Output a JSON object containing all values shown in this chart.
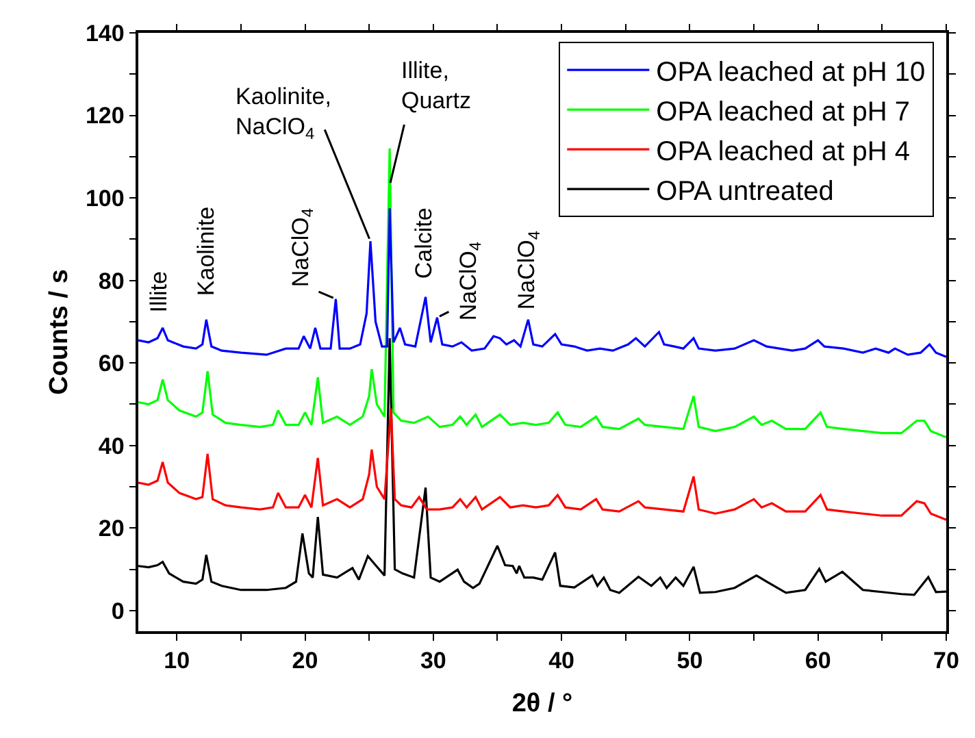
{
  "chart_data": {
    "type": "line",
    "xlabel": "2θ / °",
    "ylabel": "Counts / s",
    "xlim": [
      7,
      70
    ],
    "ylim": [
      -5,
      140
    ],
    "xticks": [
      10,
      {
        "value": 15,
        "label": null
      },
      20,
      {
        "value": 25,
        "label": null
      },
      30,
      {
        "value": 35,
        "label": null
      },
      40,
      {
        "value": 45,
        "label": null
      },
      50,
      {
        "value": 55,
        "label": null
      },
      60,
      {
        "value": 65,
        "label": null
      },
      70
    ],
    "yticks": [
      0,
      {
        "value": 10,
        "label": null
      },
      20,
      {
        "value": 30,
        "label": null
      },
      40,
      {
        "value": 50,
        "label": null
      },
      60,
      {
        "value": 70,
        "label": null
      },
      80,
      {
        "value": 90,
        "label": null
      },
      100,
      {
        "value": 110,
        "label": null
      },
      120,
      {
        "value": 130,
        "label": null
      },
      140
    ],
    "legend": "top right",
    "marker": "none",
    "line_style": "solid",
    "series": [
      {
        "name": "OPA leached at pH 10",
        "color": "#0000ff",
        "x": [
          7.0,
          7.8,
          8.5,
          8.9,
          9.3,
          10.5,
          11.5,
          12.0,
          12.3,
          12.7,
          13.5,
          15,
          17,
          18.5,
          19.5,
          19.9,
          20.4,
          20.8,
          21.2,
          22.0,
          22.4,
          22.7,
          23.5,
          24.3,
          24.8,
          25.1,
          25.5,
          26.0,
          26.4,
          26.6,
          26.9,
          27.4,
          27.8,
          28.6,
          29.4,
          29.8,
          30.3,
          30.7,
          31.5,
          32.2,
          33.0,
          34.0,
          34.7,
          35.2,
          35.7,
          36.3,
          36.8,
          37.4,
          37.8,
          38.5,
          39.5,
          40,
          41,
          42,
          43,
          44,
          45.2,
          45.8,
          46.5,
          47.6,
          48,
          48.8,
          49.5,
          50.3,
          50.7,
          52,
          53.5,
          55,
          56,
          57,
          58,
          59,
          60.0,
          60.5,
          62,
          63.5,
          64.5,
          65.5,
          66.0,
          67,
          68,
          68.7,
          69.2,
          70
        ],
        "values": [
          65.5,
          65,
          66,
          68.5,
          65.5,
          64,
          63.5,
          64.5,
          70.5,
          64,
          63,
          62.5,
          62,
          63.5,
          63.5,
          66.5,
          63.5,
          68.5,
          63.5,
          63.5,
          75.5,
          63.5,
          63.5,
          64.5,
          72,
          89.5,
          70,
          64,
          64,
          97.5,
          65,
          68.5,
          64.5,
          64,
          76,
          65,
          71,
          64.5,
          64,
          65,
          63,
          63.5,
          66.5,
          66,
          64.5,
          65.5,
          64,
          70.5,
          64.5,
          64,
          67,
          64.5,
          64,
          63,
          63.5,
          63,
          64.5,
          66,
          64,
          67.5,
          64.5,
          64,
          63.5,
          66,
          63.5,
          63,
          63.5,
          65.5,
          64,
          63.5,
          63,
          63.5,
          65.5,
          64,
          63.5,
          62.5,
          63.5,
          62.5,
          63.5,
          62,
          62.5,
          64.5,
          62.5,
          61.5
        ]
      },
      {
        "name": "OPA leached at pH 7",
        "color": "#00ff00",
        "x": [
          7.0,
          7.8,
          8.5,
          8.9,
          9.3,
          10.2,
          11.5,
          12.0,
          12.4,
          12.8,
          13.8,
          15,
          16.5,
          17.5,
          17.9,
          18.5,
          19.5,
          20.0,
          20.5,
          21.0,
          21.4,
          22.5,
          23.5,
          24.5,
          25.0,
          25.2,
          25.6,
          26.2,
          26.6,
          26.9,
          27.5,
          28.5,
          29.6,
          30.5,
          31.5,
          32.1,
          32.6,
          33.3,
          33.8,
          35.2,
          36,
          37,
          38,
          39.0,
          39.7,
          40.3,
          41.5,
          42.7,
          43.2,
          44.5,
          46.0,
          46.5,
          48,
          49.5,
          50.3,
          50.7,
          52,
          53.5,
          55.0,
          55.6,
          56.4,
          57.5,
          59,
          60.2,
          60.7,
          62,
          63.5,
          65,
          66.5,
          67.7,
          68.3,
          68.8,
          70
        ],
        "values": [
          50.5,
          50,
          51,
          56,
          51,
          48.5,
          47,
          48,
          58,
          47.5,
          45.5,
          45,
          44.5,
          45,
          48.5,
          45,
          45,
          48,
          45,
          56.5,
          45.5,
          47,
          45,
          47,
          52,
          58.5,
          50,
          47,
          112,
          48,
          46,
          45.5,
          47,
          44.5,
          45,
          47,
          45,
          47.5,
          44.5,
          47.5,
          45,
          45.5,
          45,
          45.5,
          48,
          45,
          44.5,
          47,
          44.5,
          44,
          46.5,
          45,
          44.5,
          44,
          52,
          44.5,
          43.5,
          44.5,
          47,
          45,
          46,
          44,
          44,
          48,
          44.5,
          44,
          43.5,
          43,
          43,
          46,
          46,
          43.5,
          42
        ]
      },
      {
        "name": "OPA leached at pH 4",
        "color": "#ff0000",
        "x": [
          7.0,
          7.8,
          8.5,
          8.9,
          9.3,
          10.2,
          11.5,
          12.0,
          12.4,
          12.8,
          13.8,
          15,
          16.5,
          17.5,
          17.9,
          18.5,
          19.5,
          20.0,
          20.5,
          21.0,
          21.4,
          22.5,
          23.5,
          24.5,
          25.0,
          25.2,
          25.6,
          26.2,
          26.7,
          27.0,
          27.5,
          28.3,
          28.9,
          29.5,
          30.5,
          31.5,
          32.1,
          32.6,
          33.3,
          33.8,
          35.2,
          36,
          37,
          38,
          39.0,
          39.7,
          40.3,
          41.5,
          42.7,
          43.2,
          44.5,
          46.0,
          46.5,
          48,
          49.5,
          50.3,
          50.7,
          52,
          53.5,
          55.0,
          55.6,
          56.4,
          57.5,
          59,
          60.2,
          60.7,
          62,
          63.5,
          65,
          66.5,
          67.7,
          68.3,
          68.8,
          70
        ],
        "values": [
          31,
          30.5,
          31.5,
          36,
          31,
          28.5,
          27,
          27.5,
          38,
          27,
          25.5,
          25,
          24.5,
          25,
          28.5,
          25,
          25,
          28,
          25,
          37,
          25.5,
          27,
          25,
          27,
          33,
          39,
          30,
          27,
          49,
          27,
          25.5,
          25,
          27.5,
          24.5,
          24.5,
          25,
          27,
          25,
          27.5,
          24.5,
          27.5,
          25,
          25.5,
          25,
          25.5,
          28,
          25,
          24.5,
          27,
          24.5,
          24,
          26.5,
          25,
          24.5,
          24,
          32.5,
          24.5,
          23.5,
          24.5,
          27,
          25,
          26,
          24,
          24,
          28,
          24.5,
          24,
          23.5,
          23,
          23,
          26.5,
          26,
          23.5,
          22
        ]
      },
      {
        "name": "OPA untreated",
        "color": "#000000",
        "x": [
          7.0,
          7.8,
          8.5,
          8.9,
          9.4,
          10.5,
          11.5,
          12.0,
          12.3,
          12.7,
          13.5,
          15,
          17,
          18.5,
          19.3,
          19.8,
          20.3,
          20.6,
          21.0,
          21.4,
          22.5,
          23.7,
          24.2,
          24.9,
          25.5,
          26.2,
          26.6,
          27.0,
          27.6,
          28.5,
          29.4,
          29.8,
          30.5,
          31.9,
          32.4,
          33.1,
          33.6,
          35.0,
          35.6,
          36.2,
          36.5,
          36.7,
          37.1,
          37.8,
          38.5,
          39.5,
          39.9,
          41,
          42.4,
          42.8,
          43.3,
          43.8,
          44.5,
          46.0,
          47,
          47.7,
          48.2,
          48.9,
          49.5,
          50.3,
          50.8,
          52,
          53.5,
          55.2,
          56,
          57.5,
          59,
          60.1,
          60.6,
          61.9,
          63.5,
          65,
          66.5,
          67.5,
          68.6,
          69.2,
          70
        ],
        "values": [
          10.8,
          10.5,
          11,
          11.8,
          9,
          7,
          6.5,
          7.5,
          13.5,
          7,
          6,
          5,
          5,
          5.5,
          7,
          18.7,
          9,
          8,
          22.7,
          8.7,
          8,
          10.3,
          7.5,
          13.2,
          11,
          8.5,
          66,
          10,
          9,
          8,
          29.8,
          8,
          7,
          9.9,
          7,
          5.5,
          6.5,
          15.7,
          11,
          10.8,
          9,
          10.8,
          8,
          8,
          7.5,
          14.1,
          6,
          5.6,
          8.5,
          6,
          8,
          5,
          4.3,
          8.2,
          6,
          8,
          5.5,
          8,
          6,
          10.6,
          4.3,
          4.5,
          5.5,
          8.5,
          7,
          4.3,
          5,
          10.1,
          7,
          9.4,
          5,
          4.5,
          4,
          3.8,
          8.1,
          4.5,
          4.6
        ]
      }
    ],
    "annotations": [
      {
        "text": "Illite",
        "x": 8.9,
        "y": 68.5
      },
      {
        "text": "Kaolinite",
        "x": 12.3,
        "y": 70.5
      },
      {
        "text": "NaClO$_{4}$",
        "x": 22.4,
        "y": 75.5
      },
      {
        "text": "Kaolinite,\nNaClO$_{4}$",
        "x": 25.1,
        "y": 89.5
      },
      {
        "text": "Illite,\nQuartz",
        "x": 26.6,
        "y": 103
      },
      {
        "text": "Calcite",
        "x": 29.4,
        "y": 76
      },
      {
        "text": "NaClO$_{4}$",
        "x": 30.3,
        "y": 71
      },
      {
        "text": "NaClO$_{4}$",
        "x": 37.4,
        "y": 70.5
      }
    ]
  }
}
